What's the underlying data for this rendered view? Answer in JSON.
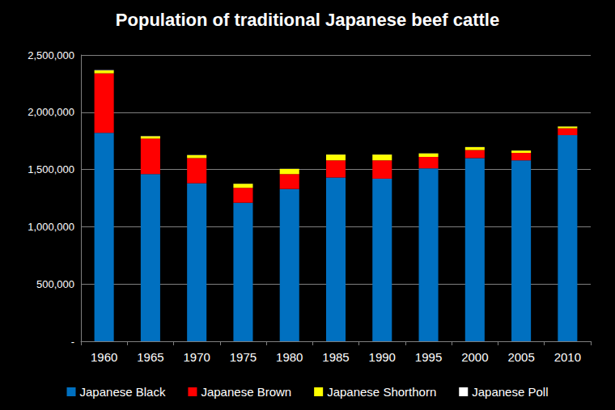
{
  "chart_data": {
    "type": "bar",
    "title": "Population of traditional Japanese beef cattle",
    "categories": [
      "1960",
      "1965",
      "1970",
      "1975",
      "1980",
      "1985",
      "1990",
      "1995",
      "2000",
      "2005",
      "2010"
    ],
    "series": [
      {
        "name": "Japanese Black",
        "color": "#0070c0",
        "values": [
          1820000,
          1460000,
          1380000,
          1210000,
          1330000,
          1430000,
          1420000,
          1510000,
          1600000,
          1580000,
          1800000
        ]
      },
      {
        "name": "Japanese Brown",
        "color": "#ff0000",
        "values": [
          520000,
          310000,
          220000,
          130000,
          130000,
          150000,
          160000,
          100000,
          70000,
          65000,
          60000
        ]
      },
      {
        "name": "Japanese Shorthorn",
        "color": "#ffff00",
        "values": [
          25000,
          20000,
          25000,
          35000,
          45000,
          50000,
          50000,
          30000,
          25000,
          20000,
          15000
        ]
      },
      {
        "name": "Japanese Poll",
        "color": "#ffffff",
        "values": [
          3000,
          2000,
          1500,
          1000,
          1000,
          1000,
          1000,
          1000,
          1000,
          1000,
          1000
        ]
      }
    ],
    "ylim": [
      0,
      2500000
    ],
    "yticks": [
      {
        "value": 0,
        "label": "-"
      },
      {
        "value": 500000,
        "label": "500,000"
      },
      {
        "value": 1000000,
        "label": "1,000,000"
      },
      {
        "value": 1500000,
        "label": "1,500,000"
      },
      {
        "value": 2000000,
        "label": "2,000,000"
      },
      {
        "value": 2500000,
        "label": "2,500,000"
      }
    ],
    "stacked": true,
    "grid": true,
    "legend": "bottom"
  }
}
